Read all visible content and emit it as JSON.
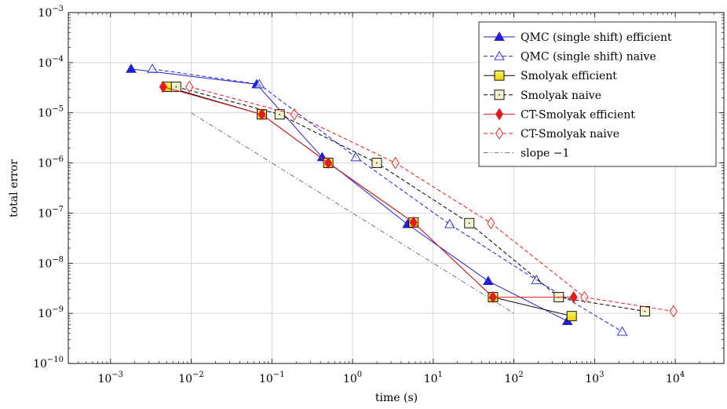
{
  "chart_data": {
    "type": "line",
    "title": "",
    "xlabel": "time (s)",
    "ylabel": "total error",
    "xscale": "log",
    "yscale": "log",
    "xlim": [
      0.0003,
      40000
    ],
    "ylim": [
      1e-10,
      0.001
    ],
    "grid": "major",
    "legend_position": "top-right",
    "x_ticks": [
      {
        "value": 0.001,
        "base": "10",
        "exp": "−3"
      },
      {
        "value": 0.01,
        "base": "10",
        "exp": "−2"
      },
      {
        "value": 0.1,
        "base": "10",
        "exp": "−1"
      },
      {
        "value": 1,
        "base": "10",
        "exp": "0"
      },
      {
        "value": 10,
        "base": "10",
        "exp": "1"
      },
      {
        "value": 100,
        "base": "10",
        "exp": "2"
      },
      {
        "value": 1000,
        "base": "10",
        "exp": "3"
      },
      {
        "value": 10000,
        "base": "10",
        "exp": "4"
      }
    ],
    "y_ticks": [
      {
        "value": 1e-10,
        "base": "10",
        "exp": "−10"
      },
      {
        "value": 1e-09,
        "base": "10",
        "exp": "−9"
      },
      {
        "value": 1e-08,
        "base": "10",
        "exp": "−8"
      },
      {
        "value": 1e-07,
        "base": "10",
        "exp": "−7"
      },
      {
        "value": 1e-06,
        "base": "10",
        "exp": "−6"
      },
      {
        "value": 1e-05,
        "base": "10",
        "exp": "−5"
      },
      {
        "value": 0.0001,
        "base": "10",
        "exp": "−4"
      },
      {
        "value": 0.001,
        "base": "10",
        "exp": "−3"
      }
    ],
    "series": [
      {
        "name": "QMC (single shift) efficient",
        "color": "#1f1fd6",
        "dash": "solid",
        "marker": "triangle",
        "filled": true,
        "x": [
          0.0018,
          0.065,
          0.42,
          4.8,
          48,
          460
        ],
        "y": [
          7.5e-05,
          3.7e-05,
          1.3e-06,
          6e-08,
          4.4e-09,
          7e-10
        ]
      },
      {
        "name": "QMC (single shift) naive",
        "color": "#1f1fd6",
        "dash": "dashed",
        "marker": "triangle",
        "filled": false,
        "x": [
          0.0033,
          0.07,
          1.1,
          16,
          190,
          2200
        ],
        "y": [
          7.5e-05,
          3.7e-05,
          1.3e-06,
          6e-08,
          4.6e-09,
          4.3e-10
        ]
      },
      {
        "name": "Smolyak efficient",
        "color": "#000000",
        "dash": "solid",
        "marker": "square",
        "filled": true,
        "x": [
          0.005,
          0.075,
          0.5,
          5.7,
          55,
          520
        ],
        "y": [
          3.3e-05,
          9.3e-06,
          1e-06,
          6.5e-08,
          2.1e-09,
          8.8e-10
        ]
      },
      {
        "name": "Smolyak naive",
        "color": "#000000",
        "dash": "dashed",
        "marker": "square",
        "filled": false,
        "x": [
          0.0065,
          0.125,
          2,
          28,
          360,
          4200
        ],
        "y": [
          3.3e-05,
          9.3e-06,
          1e-06,
          6.3e-08,
          2.1e-09,
          1.1e-09
        ]
      },
      {
        "name": "CT-Smolyak efficient",
        "color": "#e41a1c",
        "dash": "solid",
        "marker": "diamond",
        "filled": true,
        "x": [
          0.0045,
          0.075,
          0.5,
          5.7,
          55,
          550
        ],
        "y": [
          3.3e-05,
          9.3e-06,
          1e-06,
          6.5e-08,
          2.1e-09,
          2.1e-09
        ]
      },
      {
        "name": "CT-Smolyak naive",
        "color": "#e41a1c",
        "dash": "dashed",
        "marker": "diamond",
        "filled": false,
        "x": [
          0.0095,
          0.19,
          3.4,
          52,
          750,
          9500
        ],
        "y": [
          3.3e-05,
          9.3e-06,
          1e-06,
          6.3e-08,
          2.1e-09,
          1.1e-09
        ]
      },
      {
        "name": "slope −1",
        "color": "#555555",
        "dash": "dashdot",
        "marker": "none",
        "filled": false,
        "x": [
          0.01,
          100
        ],
        "y": [
          1e-05,
          1e-09
        ]
      }
    ]
  }
}
